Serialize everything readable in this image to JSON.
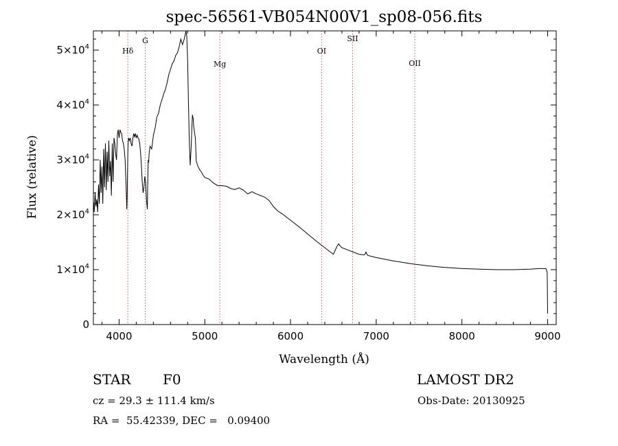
{
  "chart_data": {
    "type": "line",
    "title": "spec-56561-VB054N00V1_sp08-056.fits",
    "xlabel": "Wavelength (Å)",
    "ylabel": "Flux (relative)",
    "xlim": [
      3700,
      9100
    ],
    "ylim": [
      0,
      53500
    ],
    "xticks": [
      {
        "value": 4000,
        "label": "4000"
      },
      {
        "value": 5000,
        "label": "5000"
      },
      {
        "value": 6000,
        "label": "6000"
      },
      {
        "value": 7000,
        "label": "7000"
      },
      {
        "value": 8000,
        "label": "8000"
      },
      {
        "value": 9000,
        "label": "9000"
      }
    ],
    "yticks": [
      {
        "value": 0,
        "label": "0",
        "mantissa": "",
        "exp": ""
      },
      {
        "value": 10000,
        "label": "1×10⁴",
        "mantissa": "1×10",
        "exp": "4"
      },
      {
        "value": 20000,
        "label": "2×10⁴",
        "mantissa": "2×10",
        "exp": "4"
      },
      {
        "value": 30000,
        "label": "3×10⁴",
        "mantissa": "3×10",
        "exp": "4"
      },
      {
        "value": 40000,
        "label": "4×10⁴",
        "mantissa": "4×10",
        "exp": "4"
      },
      {
        "value": 50000,
        "label": "5×10⁴",
        "mantissa": "5×10",
        "exp": "4"
      }
    ],
    "line_markers": [
      {
        "label": "Hδ",
        "x": 4102
      },
      {
        "label": "G",
        "x": 4305
      },
      {
        "label": "Mg",
        "x": 5175
      },
      {
        "label": "OI",
        "x": 6363
      },
      {
        "label": "SII",
        "x": 6724
      },
      {
        "label": "OII",
        "x": 7450
      }
    ],
    "series": [
      {
        "color": "#000000",
        "marker_color": "#d9534f",
        "x": [
          3700,
          3710,
          3720,
          3730,
          3740,
          3750,
          3760,
          3770,
          3780,
          3790,
          3800,
          3810,
          3820,
          3830,
          3840,
          3850,
          3860,
          3870,
          3880,
          3890,
          3900,
          3910,
          3920,
          3930,
          3940,
          3950,
          3960,
          3970,
          3980,
          3990,
          4000,
          4010,
          4020,
          4030,
          4040,
          4050,
          4060,
          4070,
          4080,
          4090,
          4095,
          4100,
          4102,
          4105,
          4110,
          4120,
          4130,
          4140,
          4150,
          4160,
          4170,
          4180,
          4190,
          4200,
          4210,
          4220,
          4230,
          4240,
          4250,
          4260,
          4270,
          4280,
          4290,
          4300,
          4310,
          4320,
          4330,
          4335,
          4340,
          4345,
          4350,
          4360,
          4380,
          4400,
          4420,
          4440,
          4460,
          4480,
          4500,
          4520,
          4540,
          4560,
          4580,
          4600,
          4620,
          4640,
          4660,
          4680,
          4700,
          4720,
          4740,
          4760,
          4780,
          4790,
          4800,
          4810,
          4820,
          4830,
          4840,
          4850,
          4855,
          4860,
          4865,
          4870,
          4880,
          4890,
          4900,
          4920,
          4940,
          4960,
          4980,
          5000,
          5050,
          5100,
          5150,
          5200,
          5250,
          5300,
          5350,
          5400,
          5450,
          5500,
          5550,
          5600,
          5650,
          5700,
          5750,
          5800,
          5850,
          5900,
          6000,
          6100,
          6200,
          6300,
          6400,
          6500,
          6540,
          6560,
          6580,
          6600,
          6700,
          6800,
          6860,
          6870,
          6880,
          6900,
          7000,
          7200,
          7400,
          7600,
          7800,
          8000,
          8200,
          8400,
          8600,
          8800,
          8900,
          8950,
          8980,
          8995,
          9000
        ],
        "y": [
          22500,
          20500,
          24000,
          21500,
          22800,
          20500,
          25500,
          22000,
          30000,
          24000,
          28800,
          22000,
          32000,
          25000,
          33000,
          24500,
          31500,
          26000,
          33500,
          27000,
          29800,
          23500,
          33000,
          26000,
          34000,
          33000,
          31000,
          30000,
          34500,
          35500,
          34000,
          35500,
          35000,
          34800,
          33500,
          33000,
          32000,
          30000,
          26000,
          21000,
          24000,
          29000,
          31500,
          33000,
          34000,
          33500,
          34000,
          33000,
          32500,
          33800,
          34800,
          34200,
          34800,
          34000,
          34500,
          34000,
          33800,
          33000,
          31500,
          29000,
          26000,
          24000,
          25000,
          27000,
          26000,
          22500,
          21000,
          27000,
          30000,
          29500,
          31000,
          32500,
          32000,
          34500,
          35800,
          37800,
          38500,
          40000,
          41000,
          42000,
          42800,
          44000,
          45500,
          46500,
          47500,
          48000,
          49000,
          49500,
          50500,
          52000,
          51000,
          52000,
          53500,
          52500,
          48000,
          40000,
          33000,
          29000,
          32000,
          36000,
          38200,
          37800,
          37500,
          36200,
          35000,
          34000,
          29800,
          28800,
          28200,
          27800,
          27200,
          26800,
          26500,
          25800,
          25300,
          25300,
          25200,
          24800,
          24600,
          24900,
          24500,
          23800,
          24200,
          23800,
          23500,
          23200,
          22600,
          21500,
          20700,
          20200,
          19000,
          17800,
          16500,
          15200,
          14000,
          12800,
          14200,
          14700,
          14300,
          14000,
          13400,
          12800,
          12700,
          12800,
          13200,
          12600,
          12200,
          11600,
          11100,
          10700,
          10400,
          10200,
          10100,
          10000,
          10000,
          10100,
          10200,
          10200,
          10200,
          9500,
          2000
        ]
      }
    ]
  },
  "info": {
    "object_class": "STAR",
    "subclass": "F0",
    "survey": "LAMOST DR2",
    "cz": "cz = 29.3 ± 111.4 km/s",
    "obs_date": "Obs-Date: 20130925",
    "coords": "RA =  55.42339, DEC =   0.09400"
  }
}
